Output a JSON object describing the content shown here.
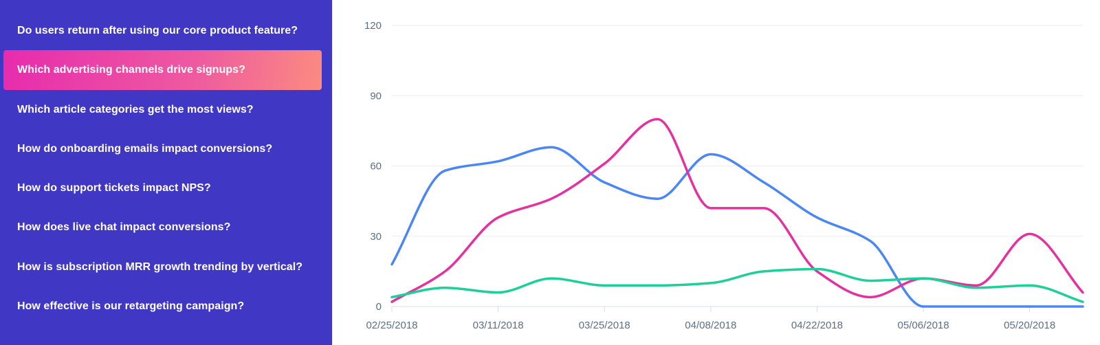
{
  "sidebar": {
    "questions": [
      {
        "label": "Do users return after using our core product feature?",
        "active": false
      },
      {
        "label": "Which advertising channels drive signups?",
        "active": true
      },
      {
        "label": "Which article categories get the most views?",
        "active": false
      },
      {
        "label": "How do onboarding emails impact conversions?",
        "active": false
      },
      {
        "label": "How do support tickets impact NPS?",
        "active": false
      },
      {
        "label": "How does live chat impact conversions?",
        "active": false
      },
      {
        "label": "How is subscription MRR growth trending by vertical?",
        "active": false
      },
      {
        "label": "How effective is our retargeting campaign?",
        "active": false
      }
    ]
  },
  "chart_data": {
    "type": "line",
    "title": "",
    "xlabel": "",
    "ylabel": "",
    "x": [
      "02/25/2018",
      "03/04/2018",
      "03/11/2018",
      "03/18/2018",
      "03/25/2018",
      "04/01/2018",
      "04/08/2018",
      "04/15/2018",
      "04/22/2018",
      "04/29/2018",
      "05/06/2018",
      "05/13/2018",
      "05/20/2018",
      "05/27/2018"
    ],
    "x_tick_labels": [
      "02/25/2018",
      "03/11/2018",
      "03/25/2018",
      "04/08/2018",
      "04/22/2018",
      "05/06/2018",
      "05/20/2018"
    ],
    "y_ticks": [
      0,
      30,
      60,
      90,
      120
    ],
    "ylim": [
      0,
      120
    ],
    "grid": "horizontal",
    "legend": "none",
    "series": [
      {
        "color": "#4a86f5",
        "values": [
          18,
          58,
          62,
          68,
          53,
          46,
          65,
          53,
          38,
          28,
          0,
          0,
          0,
          0
        ]
      },
      {
        "color": "#e5309f",
        "values": [
          2,
          15,
          38,
          46,
          61,
          80,
          42,
          42,
          15,
          4,
          12,
          9,
          31,
          6
        ]
      },
      {
        "color": "#1dd098",
        "values": [
          4,
          8,
          6,
          12,
          9,
          9,
          10,
          15,
          16,
          11,
          12,
          8,
          9,
          2
        ]
      }
    ]
  }
}
